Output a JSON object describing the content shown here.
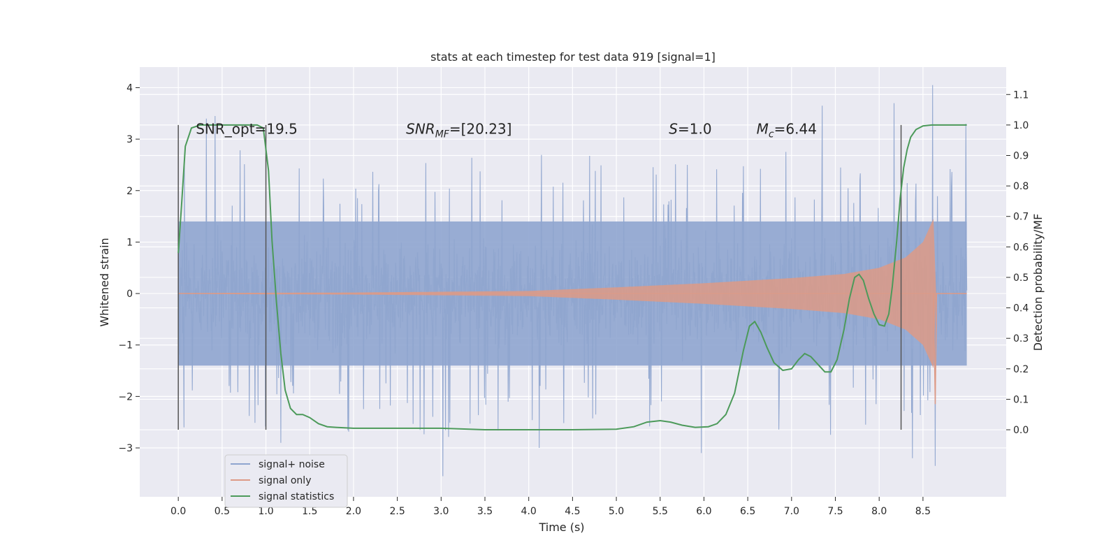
{
  "chart_data": {
    "type": "line",
    "title": "stats at each timestep for test data 919 [signal=1]",
    "xlabel": "Time (s)",
    "ylabel": "Whitened strain",
    "ylabel_right": "Detection probability/MF",
    "xlim": [
      -0.44,
      9.45
    ],
    "ylim": [
      -3.95,
      4.4
    ],
    "ylim_right": [
      -0.22,
      1.19
    ],
    "x_ticks": [
      "0.0",
      "0.5",
      "1.0",
      "1.5",
      "2.0",
      "2.5",
      "3.0",
      "3.5",
      "4.0",
      "4.5",
      "5.0",
      "5.5",
      "6.0",
      "6.5",
      "7.0",
      "7.5",
      "8.0",
      "8.5"
    ],
    "y_ticks": [
      "−3",
      "−2",
      "−1",
      "0",
      "1",
      "2",
      "3",
      "4"
    ],
    "y_ticks_right": [
      "0.0",
      "0.1",
      "0.2",
      "0.3",
      "0.4",
      "0.5",
      "0.6",
      "0.7",
      "0.8",
      "0.9",
      "1.0",
      "1.1"
    ],
    "annotations": [
      {
        "text": "SNR_opt=19.5",
        "x": 0.2,
        "y": 3.2
      },
      {
        "text": "SNR",
        "sub": "MF",
        "suffix": "=[20.23]",
        "x": 2.6,
        "y": 3.2
      },
      {
        "text": "S",
        "suffix": "=1.0",
        "x": 5.6,
        "y": 3.2
      },
      {
        "text": "M",
        "sub": "c",
        "suffix": "=6.44",
        "x": 6.6,
        "y": 3.2
      }
    ],
    "vlines": [
      {
        "x": 0.0,
        "ymin": 0.0,
        "ymax": 1.0
      },
      {
        "x": 1.0,
        "ymin": 0.0,
        "ymax": 1.0
      },
      {
        "x": 8.25,
        "ymin": 0.0,
        "ymax": 1.0
      }
    ],
    "grid": true,
    "legend": "lower-left",
    "series": [
      {
        "name": "signal+ noise",
        "color": "#8fa5cf",
        "axis": "left",
        "duration": 9.0,
        "typical_amplitude": 1.0,
        "spike_range": [
          -3.6,
          4.05
        ],
        "spikes": [
          {
            "x": 0.32,
            "y": 3.4
          },
          {
            "x": 0.42,
            "y": 3.45
          },
          {
            "x": 3.02,
            "y": -3.55
          },
          {
            "x": 7.35,
            "y": 3.65
          },
          {
            "x": 8.17,
            "y": 3.7
          },
          {
            "x": 8.61,
            "y": 4.05
          },
          {
            "x": 8.64,
            "y": -3.35
          },
          {
            "x": 4.12,
            "y": -3.0
          },
          {
            "x": 5.97,
            "y": -3.1
          },
          {
            "x": 8.38,
            "y": -3.2
          },
          {
            "x": 1.17,
            "y": -2.9
          },
          {
            "x": 8.99,
            "y": 3.3
          }
        ]
      },
      {
        "name": "signal only",
        "color": "#dd9a86",
        "axis": "left",
        "envelope": [
          {
            "x": 0.0,
            "a": 0.01
          },
          {
            "x": 2.0,
            "a": 0.02
          },
          {
            "x": 4.0,
            "a": 0.05
          },
          {
            "x": 5.0,
            "a": 0.12
          },
          {
            "x": 6.0,
            "a": 0.2
          },
          {
            "x": 7.0,
            "a": 0.3
          },
          {
            "x": 7.6,
            "a": 0.38
          },
          {
            "x": 8.0,
            "a": 0.5
          },
          {
            "x": 8.3,
            "a": 0.7
          },
          {
            "x": 8.5,
            "a": 1.0
          },
          {
            "x": 8.62,
            "a": 1.45
          },
          {
            "x": 8.65,
            "a": 0.0
          }
        ],
        "merger_dip": {
          "x": 8.64,
          "y": -2.15
        }
      },
      {
        "name": "signal statistics",
        "color": "#4c9a5a",
        "axis": "right",
        "x": [
          0.0,
          0.04,
          0.08,
          0.15,
          0.25,
          0.4,
          0.6,
          0.8,
          0.9,
          0.97,
          1.03,
          1.07,
          1.12,
          1.17,
          1.22,
          1.28,
          1.35,
          1.42,
          1.5,
          1.6,
          1.7,
          1.8,
          2.0,
          2.5,
          3.0,
          3.5,
          4.0,
          4.5,
          5.0,
          5.2,
          5.35,
          5.5,
          5.62,
          5.75,
          5.9,
          6.05,
          6.15,
          6.25,
          6.35,
          6.45,
          6.52,
          6.58,
          6.65,
          6.72,
          6.8,
          6.9,
          7.0,
          7.08,
          7.15,
          7.22,
          7.3,
          7.38,
          7.45,
          7.52,
          7.6,
          7.66,
          7.72,
          7.77,
          7.82,
          7.88,
          7.94,
          8.0,
          8.06,
          8.11,
          8.15,
          8.2,
          8.24,
          8.28,
          8.32,
          8.36,
          8.42,
          8.5,
          8.6,
          8.8,
          9.0
        ],
        "y": [
          0.58,
          0.75,
          0.93,
          0.99,
          1.0,
          1.0,
          1.0,
          1.0,
          1.0,
          0.99,
          0.85,
          0.62,
          0.42,
          0.25,
          0.13,
          0.07,
          0.05,
          0.05,
          0.04,
          0.02,
          0.01,
          0.008,
          0.005,
          0.005,
          0.005,
          0.0,
          0.0,
          0.0,
          0.002,
          0.01,
          0.025,
          0.03,
          0.025,
          0.015,
          0.008,
          0.01,
          0.02,
          0.05,
          0.12,
          0.26,
          0.34,
          0.355,
          0.32,
          0.27,
          0.22,
          0.195,
          0.2,
          0.23,
          0.25,
          0.24,
          0.215,
          0.19,
          0.19,
          0.23,
          0.33,
          0.43,
          0.5,
          0.51,
          0.49,
          0.43,
          0.38,
          0.345,
          0.34,
          0.38,
          0.47,
          0.62,
          0.76,
          0.86,
          0.92,
          0.96,
          0.985,
          0.997,
          1.0,
          1.0,
          1.0
        ]
      }
    ]
  }
}
